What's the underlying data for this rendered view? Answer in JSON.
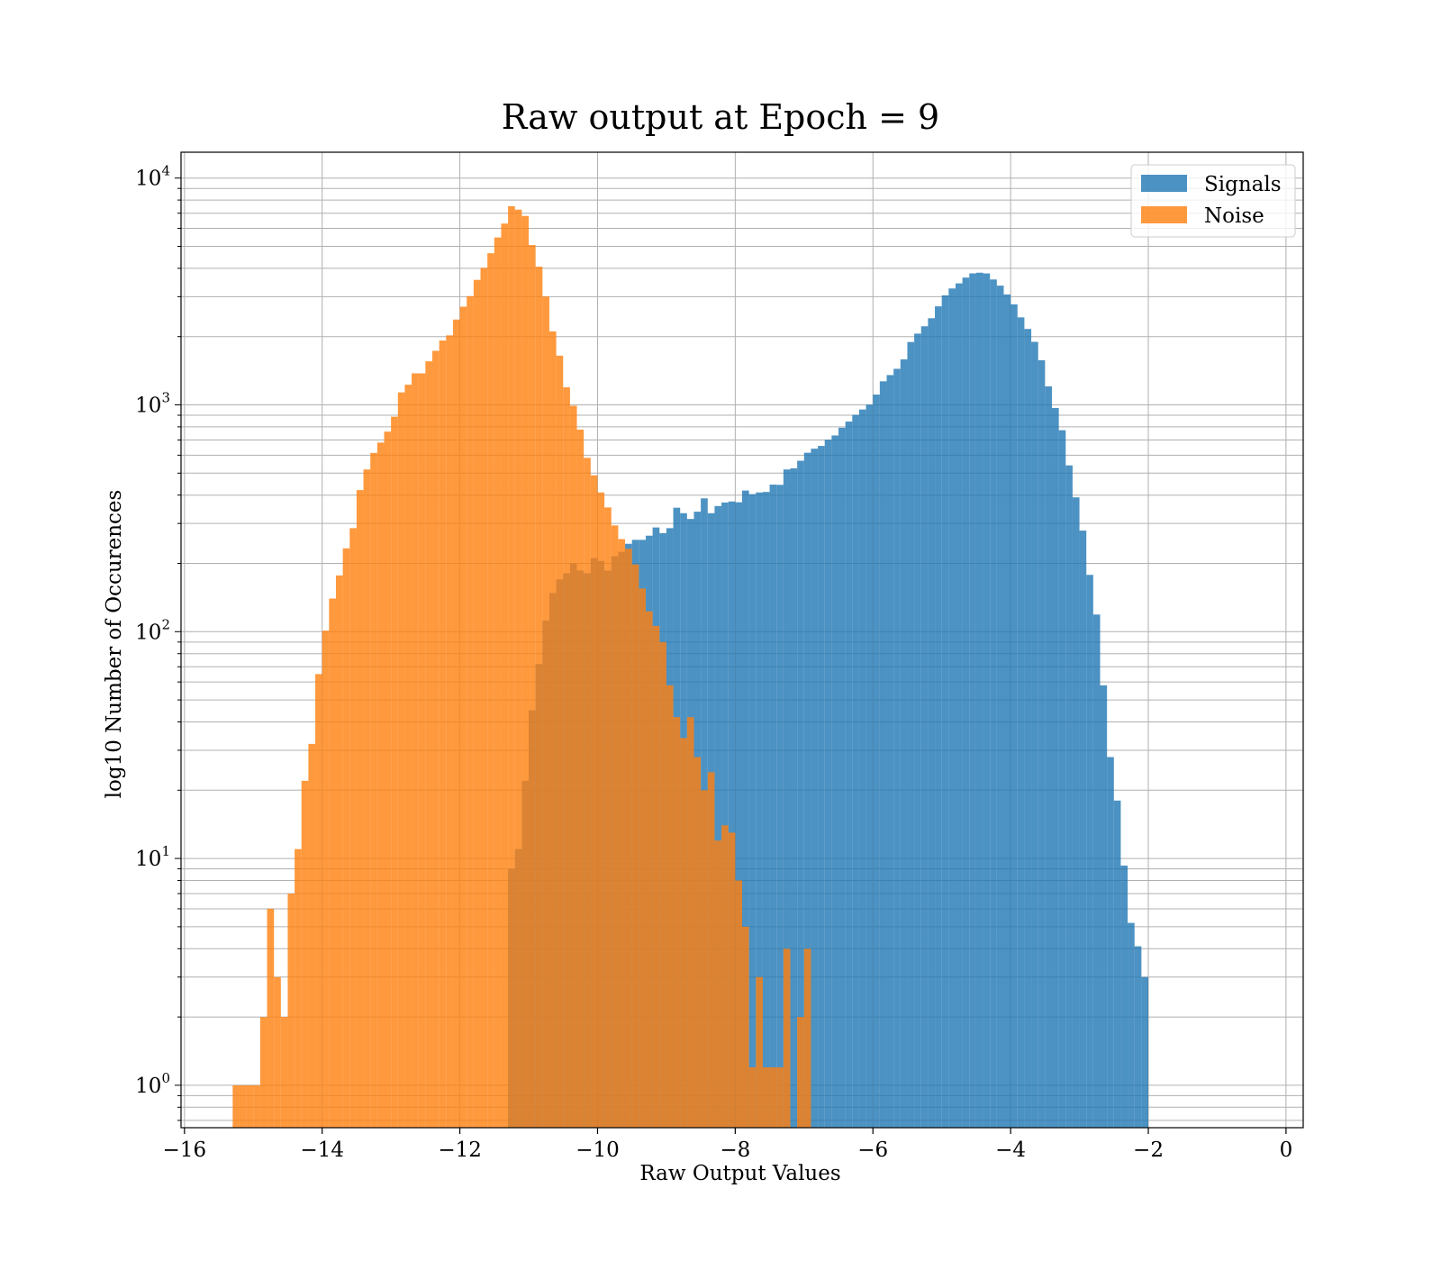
{
  "chart_data": {
    "type": "histogram",
    "title": "Raw output at Epoch = 9",
    "xlabel": "Raw Output Values",
    "ylabel": "log10 Number of Occurences",
    "xlim": [
      -16.05,
      0.25
    ],
    "ylim": [
      0.65,
      13000
    ],
    "yscale": "log",
    "grid": "both",
    "legend_position": "top-right",
    "x_ticks": [
      -16,
      -14,
      -12,
      -10,
      -8,
      -6,
      -4,
      -2,
      0
    ],
    "x_tick_labels": [
      "−16",
      "−14",
      "−12",
      "−10",
      "−8",
      "−6",
      "−4",
      "−2",
      "0"
    ],
    "y_ticks": [
      1,
      10,
      100,
      1000,
      10000
    ],
    "y_tick_labels": [
      {
        "base": "10",
        "exp": "0"
      },
      {
        "base": "10",
        "exp": "1"
      },
      {
        "base": "10",
        "exp": "2"
      },
      {
        "base": "10",
        "exp": "3"
      },
      {
        "base": "10",
        "exp": "4"
      }
    ],
    "series": [
      {
        "name": "Signals",
        "color": "#1f77b4",
        "bin_start": -11.3,
        "bin_width": 0.1,
        "values": [
          9,
          11,
          22,
          45,
          72,
          112,
          148,
          170,
          181,
          200,
          186,
          181,
          211,
          205,
          186,
          215,
          225,
          244,
          254,
          254,
          265,
          288,
          272,
          286,
          352,
          333,
          314,
          338,
          387,
          333,
          358,
          371,
          375,
          372,
          419,
          404,
          411,
          413,
          445,
          444,
          519,
          525,
          567,
          615,
          641,
          659,
          702,
          733,
          793,
          844,
          904,
          954,
          1003,
          1110,
          1270,
          1353,
          1442,
          1587,
          1893,
          2061,
          2221,
          2410,
          2719,
          3040,
          3260,
          3432,
          3641,
          3799,
          3826,
          3798,
          3571,
          3355,
          3068,
          2775,
          2431,
          2161,
          1896,
          1573,
          1206,
          969,
          773,
          541,
          391,
          279,
          178,
          119,
          58,
          28,
          18,
          9.3,
          5.2,
          4.1,
          3.0
        ],
        "notes": ""
      },
      {
        "name": "Noise",
        "color": "#ff7f0e",
        "bin_start": -15.3,
        "bin_width": 0.1,
        "values": [
          1,
          1,
          1,
          1,
          2,
          6,
          3,
          2,
          7,
          11,
          22,
          32,
          65,
          101,
          140,
          177,
          233,
          286,
          421,
          519,
          614,
          682,
          762,
          887,
          1135,
          1227,
          1377,
          1377,
          1556,
          1731,
          1921,
          2025,
          2378,
          2710,
          3015,
          3558,
          4020,
          4662,
          5470,
          6300,
          7513,
          7256,
          6807,
          5064,
          4066,
          3006,
          2109,
          1648,
          1195,
          991,
          778,
          584,
          489,
          411,
          353,
          294,
          256,
          232,
          198,
          155,
          123,
          106,
          90,
          58,
          42,
          34,
          42,
          28,
          20,
          24,
          12,
          14,
          13,
          8,
          5,
          1.2,
          3,
          1.2,
          1.2,
          1.2,
          4,
          0,
          2,
          4
        ],
        "notes": ""
      }
    ]
  }
}
